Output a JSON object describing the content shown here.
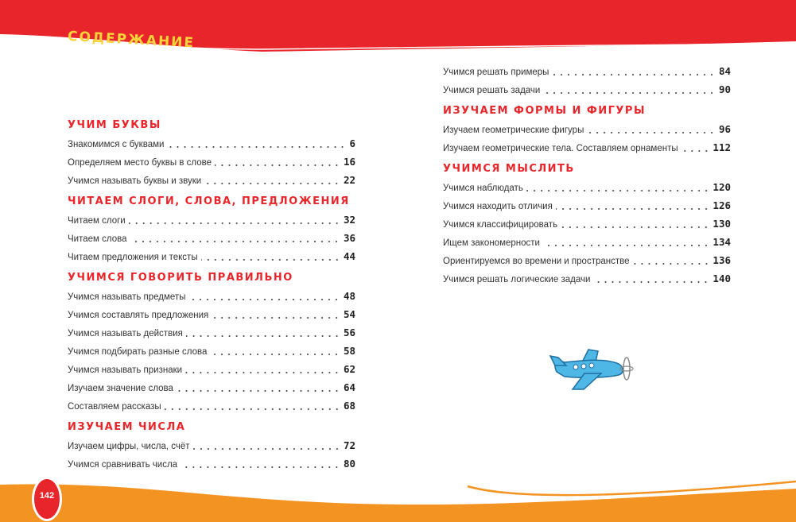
{
  "title": "СОДЕРЖАНИЕ",
  "page_number": "142",
  "colors": {
    "header_red": "#e8252a",
    "title_yellow": "#f7d43a",
    "footer_orange": "#f39322",
    "plane_blue": "#4fb7e6"
  },
  "left_column": [
    {
      "heading": "УЧИМ БУКВЫ",
      "items": [
        {
          "label": "Знакомимся с буквами",
          "page": "6"
        },
        {
          "label": "Определяем место буквы в слове",
          "page": "16"
        },
        {
          "label": "Учимся называть буквы и звуки",
          "page": "22"
        }
      ]
    },
    {
      "heading": "ЧИТАЕМ СЛОГИ, СЛОВА, ПРЕДЛОЖЕНИЯ",
      "items": [
        {
          "label": "Читаем слоги",
          "page": "32"
        },
        {
          "label": "Читаем слова",
          "page": "36"
        },
        {
          "label": "Читаем предложения и тексты",
          "page": "44"
        }
      ]
    },
    {
      "heading": "УЧИМСЯ ГОВОРИТЬ ПРАВИЛЬНО",
      "items": [
        {
          "label": "Учимся называть предметы",
          "page": "48"
        },
        {
          "label": "Учимся составлять предложения",
          "page": "54"
        },
        {
          "label": "Учимся называть действия",
          "page": "56"
        },
        {
          "label": "Учимся подбирать разные слова",
          "page": "58"
        },
        {
          "label": "Учимся называть признаки",
          "page": "62"
        },
        {
          "label": "Изучаем значение слова",
          "page": "64"
        },
        {
          "label": "Составляем рассказы",
          "page": "68"
        }
      ]
    },
    {
      "heading": "ИЗУЧАЕМ ЧИСЛА",
      "items": [
        {
          "label": "Изучаем цифры, числа, счёт",
          "page": "72"
        },
        {
          "label": "Учимся сравнивать числа",
          "page": "80"
        }
      ]
    }
  ],
  "right_column": [
    {
      "heading": "",
      "items": [
        {
          "label": "Учимся решать примеры",
          "page": "84"
        },
        {
          "label": "Учимся решать задачи",
          "page": "90"
        }
      ]
    },
    {
      "heading": "ИЗУЧАЕМ ФОРМЫ И ФИГУРЫ",
      "items": [
        {
          "label": "Изучаем геометрические фигуры",
          "page": "96"
        },
        {
          "label": "Изучаем геометрические тела. Составляем орнаменты",
          "page": "112"
        }
      ]
    },
    {
      "heading": "УЧИМСЯ МЫСЛИТЬ",
      "items": [
        {
          "label": "Учимся наблюдать",
          "page": "120"
        },
        {
          "label": "Учимся находить отличия",
          "page": "126"
        },
        {
          "label": "Учимся классифицировать",
          "page": "130"
        },
        {
          "label": "Ищем закономерности",
          "page": "134"
        },
        {
          "label": "Ориентируемся во времени и пространстве",
          "page": "136"
        },
        {
          "label": "Учимся решать логические задачи",
          "page": "140"
        }
      ]
    }
  ]
}
